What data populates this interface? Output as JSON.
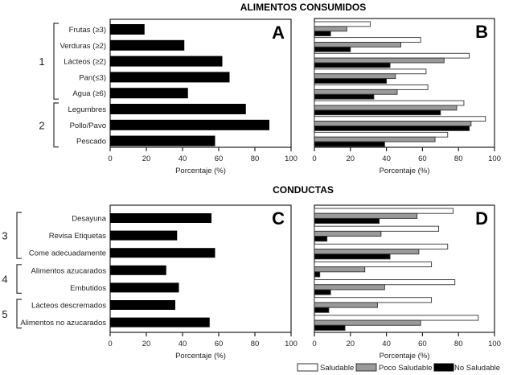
{
  "chart_data": [
    {
      "id": "A",
      "type": "bar",
      "orientation": "horizontal",
      "section_title": "ALIMENTOS CONSUMIDOS",
      "panel_label": "A",
      "categories": [
        "Frutas (≥3)",
        "Verduras (≥2)",
        "Lácteos (≥2)",
        "Pan(≤3)",
        "Agua (≥6)",
        "Legumbres",
        "Pollo/Pavo",
        "Pescado"
      ],
      "values": [
        19,
        41,
        62,
        66,
        43,
        75,
        88,
        58
      ],
      "groups": [
        {
          "label": "1",
          "from": 0,
          "to": 4
        },
        {
          "label": "2",
          "from": 5,
          "to": 7
        }
      ],
      "xlabel": "Porcentaje (%)",
      "xlim": [
        0,
        100
      ],
      "xticks": [
        0,
        20,
        40,
        60,
        80,
        100
      ],
      "grid": false
    },
    {
      "id": "B",
      "type": "bar",
      "orientation": "horizontal",
      "panel_label": "B",
      "categories": [
        "Frutas (≥3)",
        "Verduras (≥2)",
        "Lácteos (≥2)",
        "Pan(≤3)",
        "Agua (≥6)",
        "Legumbres",
        "Pollo/Pavo",
        "Pescado"
      ],
      "series": [
        {
          "name": "Saludable",
          "values": [
            31,
            59,
            86,
            62,
            63,
            83,
            95,
            74
          ]
        },
        {
          "name": "Poco Saludable",
          "values": [
            18,
            48,
            72,
            45,
            46,
            79,
            87,
            67
          ]
        },
        {
          "name": "No Saludable",
          "values": [
            9,
            20,
            42,
            40,
            33,
            70,
            86,
            39
          ]
        }
      ],
      "xlabel": "Porcentaje (%)",
      "xlim": [
        0,
        100
      ],
      "xticks": [
        0,
        20,
        40,
        60,
        80,
        100
      ],
      "grid": false
    },
    {
      "id": "C",
      "type": "bar",
      "orientation": "horizontal",
      "section_title": "CONDUCTAS",
      "panel_label": "C",
      "categories": [
        "Desayuna",
        "Revisa Etiquetas",
        "Come adecuadamente",
        "Alimentos azucarados",
        "Embutidos",
        "Lácteos descremados",
        "Alimentos no azucarados"
      ],
      "values": [
        56,
        37,
        58,
        31,
        38,
        36,
        55
      ],
      "groups": [
        {
          "label": "3",
          "from": 0,
          "to": 2
        },
        {
          "label": "4",
          "from": 3,
          "to": 4
        },
        {
          "label": "5",
          "from": 5,
          "to": 6
        }
      ],
      "xlabel": "Porcentaje (%)",
      "xlim": [
        0,
        100
      ],
      "xticks": [
        0,
        20,
        40,
        60,
        80,
        100
      ],
      "grid": false
    },
    {
      "id": "D",
      "type": "bar",
      "orientation": "horizontal",
      "panel_label": "D",
      "categories": [
        "Desayuna",
        "Revisa Etiquetas",
        "Come adecuadamente",
        "Alimentos azucarados",
        "Embutidos",
        "Lácteos descremados",
        "Alimentos no azucarados"
      ],
      "series": [
        {
          "name": "Saludable",
          "values": [
            77,
            69,
            74,
            65,
            78,
            65,
            91
          ]
        },
        {
          "name": "Poco Saludable",
          "values": [
            57,
            37,
            58,
            28,
            39,
            35,
            59
          ]
        },
        {
          "name": "No Saludable",
          "values": [
            36,
            7,
            42,
            3,
            9,
            8,
            17
          ]
        }
      ],
      "xlabel": "Porcentaje (%)",
      "xlim": [
        0,
        100
      ],
      "xticks": [
        0,
        20,
        40,
        60,
        80,
        100
      ],
      "grid": false
    }
  ],
  "legend": {
    "placement": "bottom-right",
    "items": [
      {
        "label": "Saludable",
        "color": "#ffffff"
      },
      {
        "label": "Poco Saludable",
        "color": "#9a9a9a"
      },
      {
        "label": "No Saludable",
        "color": "#000000"
      }
    ]
  },
  "colors": {
    "single_bar": "#000000",
    "axis": "#222222"
  }
}
